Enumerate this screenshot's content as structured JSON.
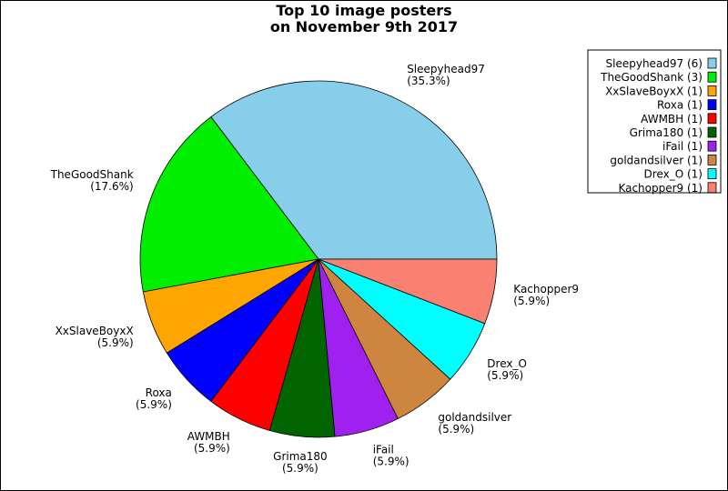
{
  "chart_data": {
    "type": "pie",
    "title": [
      "Top 10 image posters",
      "on November 9th 2017"
    ],
    "legend_position": "top-right",
    "slices": [
      {
        "label": "Sleepyhead97",
        "value": 6,
        "percent": "(35.3%)",
        "legend": "Sleepyhead97 (6)",
        "color": "#87CEEB"
      },
      {
        "label": "TheGoodShank",
        "value": 3,
        "percent": "(17.6%)",
        "legend": "TheGoodShank (3)",
        "color": "#00EE00"
      },
      {
        "label": "XxSlaveBoyxX",
        "value": 1,
        "percent": "(5.9%)",
        "legend": "XxSlaveBoyxX (1)",
        "color": "#FFA500"
      },
      {
        "label": "Roxa",
        "value": 1,
        "percent": "(5.9%)",
        "legend": "Roxa (1)",
        "color": "#0000FF"
      },
      {
        "label": "AWMBH",
        "value": 1,
        "percent": "(5.9%)",
        "legend": "AWMBH (1)",
        "color": "#FF0000"
      },
      {
        "label": "Grima180",
        "value": 1,
        "percent": "(5.9%)",
        "legend": "Grima180 (1)",
        "color": "#006400"
      },
      {
        "label": "iFail",
        "value": 1,
        "percent": "(5.9%)",
        "legend": "iFail (1)",
        "color": "#A020F0"
      },
      {
        "label": "goldandsilver",
        "value": 1,
        "percent": "(5.9%)",
        "legend": "goldandsilver (1)",
        "color": "#CD853F"
      },
      {
        "label": "Drex_O",
        "value": 1,
        "percent": "(5.9%)",
        "legend": "Drex_O (1)",
        "color": "#00FFFF"
      },
      {
        "label": "Kachopper9",
        "value": 1,
        "percent": "(5.9%)",
        "legend": "Kachopper9 (1)",
        "color": "#FA8072"
      }
    ]
  }
}
